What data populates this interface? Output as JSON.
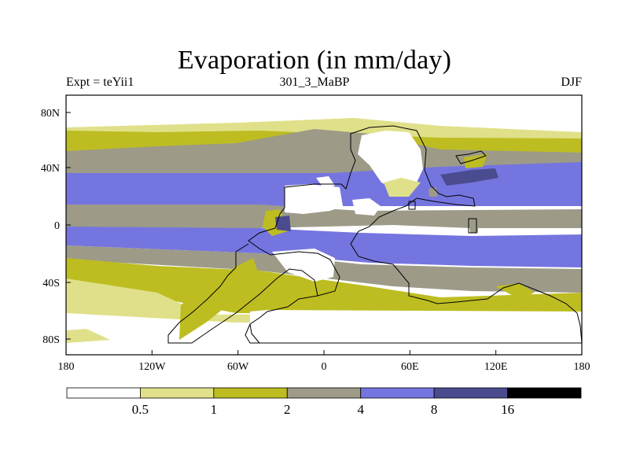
{
  "title": "Evaporation (in mm/day)",
  "left_label": "Expt = teYii1",
  "center_label": "301_3_MaBP",
  "right_label": "DJF",
  "x_ticks": [
    "180",
    "120W",
    "60W",
    "0",
    "60E",
    "120E",
    "180"
  ],
  "y_ticks": [
    "80N",
    "40N",
    "0",
    "40S",
    "80S"
  ],
  "colorbar": {
    "labels": [
      "0.5",
      "1",
      "2",
      "4",
      "8",
      "16"
    ],
    "colors": [
      "#ffffff",
      "#e0e08a",
      "#bdbd22",
      "#9d9a88",
      "#7575e0",
      "#4b4b90",
      "#000000"
    ]
  },
  "map_colors": {
    "land": "#ffffff",
    "dry": "#e0e08a",
    "low": "#bdbd22",
    "mid": "#9d9a88",
    "high": "#7575e0",
    "vhigh": "#4b4b90"
  }
}
